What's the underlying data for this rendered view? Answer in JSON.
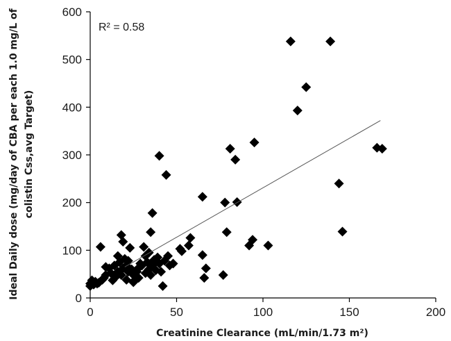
{
  "chart_data": {
    "type": "scatter",
    "xlabel": "Creatinine Clearance (mL/min/1.73 m²)",
    "ylabel_lines": [
      "Ideal Daily dose (mg/day of CBA per each 1.0 mg/L of",
      "colistin Css,avg Target)"
    ],
    "xlim": [
      0,
      200
    ],
    "ylim": [
      0,
      600
    ],
    "x_ticks": [
      0,
      50,
      100,
      150,
      200
    ],
    "y_ticks": [
      0,
      100,
      200,
      300,
      400,
      500,
      600
    ],
    "grid": false,
    "marker": "diamond",
    "marker_color": "#000000",
    "annotation": "R² = 0.58",
    "trendline": {
      "x": [
        20,
        168
      ],
      "y": [
        65,
        372
      ]
    },
    "points": [
      {
        "x": 0,
        "y": 25
      },
      {
        "x": 0,
        "y": 30
      },
      {
        "x": 1,
        "y": 33
      },
      {
        "x": 1,
        "y": 37
      },
      {
        "x": 2,
        "y": 28
      },
      {
        "x": 3,
        "y": 34
      },
      {
        "x": 4,
        "y": 30
      },
      {
        "x": 5,
        "y": 32
      },
      {
        "x": 6,
        "y": 107
      },
      {
        "x": 7,
        "y": 38
      },
      {
        "x": 8,
        "y": 42
      },
      {
        "x": 9,
        "y": 48
      },
      {
        "x": 9,
        "y": 65
      },
      {
        "x": 11,
        "y": 62
      },
      {
        "x": 12,
        "y": 52
      },
      {
        "x": 13,
        "y": 37
      },
      {
        "x": 14,
        "y": 68
      },
      {
        "x": 15,
        "y": 45
      },
      {
        "x": 16,
        "y": 55
      },
      {
        "x": 16,
        "y": 88
      },
      {
        "x": 17,
        "y": 75
      },
      {
        "x": 18,
        "y": 48
      },
      {
        "x": 18,
        "y": 132
      },
      {
        "x": 19,
        "y": 118
      },
      {
        "x": 19,
        "y": 62
      },
      {
        "x": 20,
        "y": 82
      },
      {
        "x": 21,
        "y": 38
      },
      {
        "x": 21,
        "y": 68
      },
      {
        "x": 22,
        "y": 55
      },
      {
        "x": 22,
        "y": 78
      },
      {
        "x": 23,
        "y": 105
      },
      {
        "x": 24,
        "y": 60
      },
      {
        "x": 25,
        "y": 48
      },
      {
        "x": 25,
        "y": 33
      },
      {
        "x": 26,
        "y": 38
      },
      {
        "x": 27,
        "y": 55
      },
      {
        "x": 28,
        "y": 63
      },
      {
        "x": 28,
        "y": 42
      },
      {
        "x": 29,
        "y": 72
      },
      {
        "x": 30,
        "y": 68
      },
      {
        "x": 31,
        "y": 107
      },
      {
        "x": 32,
        "y": 88
      },
      {
        "x": 32,
        "y": 52
      },
      {
        "x": 33,
        "y": 75
      },
      {
        "x": 34,
        "y": 60
      },
      {
        "x": 34,
        "y": 95
      },
      {
        "x": 35,
        "y": 48
      },
      {
        "x": 35,
        "y": 138
      },
      {
        "x": 36,
        "y": 178
      },
      {
        "x": 36,
        "y": 68
      },
      {
        "x": 37,
        "y": 80
      },
      {
        "x": 38,
        "y": 58
      },
      {
        "x": 39,
        "y": 85
      },
      {
        "x": 40,
        "y": 72
      },
      {
        "x": 40,
        "y": 298
      },
      {
        "x": 41,
        "y": 55
      },
      {
        "x": 42,
        "y": 25
      },
      {
        "x": 43,
        "y": 78
      },
      {
        "x": 44,
        "y": 258
      },
      {
        "x": 45,
        "y": 88
      },
      {
        "x": 46,
        "y": 68
      },
      {
        "x": 48,
        "y": 72
      },
      {
        "x": 52,
        "y": 103
      },
      {
        "x": 53,
        "y": 98
      },
      {
        "x": 57,
        "y": 110
      },
      {
        "x": 58,
        "y": 126
      },
      {
        "x": 65,
        "y": 212
      },
      {
        "x": 65,
        "y": 90
      },
      {
        "x": 66,
        "y": 42
      },
      {
        "x": 67,
        "y": 62
      },
      {
        "x": 77,
        "y": 48
      },
      {
        "x": 78,
        "y": 200
      },
      {
        "x": 79,
        "y": 138
      },
      {
        "x": 81,
        "y": 313
      },
      {
        "x": 84,
        "y": 290
      },
      {
        "x": 85,
        "y": 201
      },
      {
        "x": 92,
        "y": 110
      },
      {
        "x": 94,
        "y": 122
      },
      {
        "x": 95,
        "y": 326
      },
      {
        "x": 103,
        "y": 110
      },
      {
        "x": 116,
        "y": 538
      },
      {
        "x": 120,
        "y": 393
      },
      {
        "x": 125,
        "y": 442
      },
      {
        "x": 139,
        "y": 538
      },
      {
        "x": 144,
        "y": 240
      },
      {
        "x": 146,
        "y": 139
      },
      {
        "x": 166,
        "y": 315
      },
      {
        "x": 169,
        "y": 313
      }
    ]
  }
}
